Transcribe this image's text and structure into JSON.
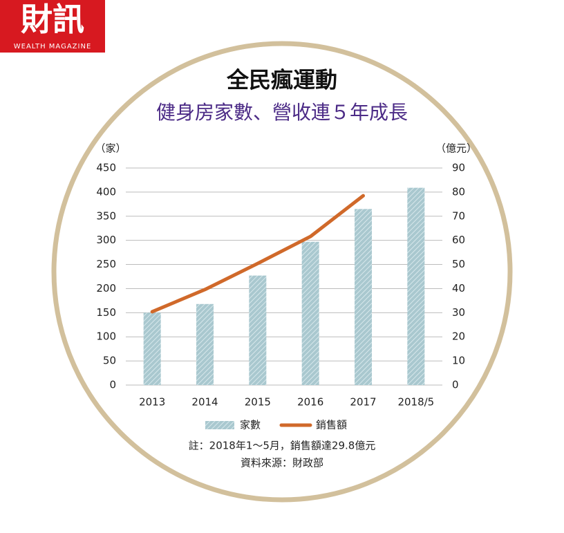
{
  "logo": {
    "title": "財訊",
    "subtitle": "WEALTH MAGAZINE"
  },
  "chart_data": {
    "type": "bar",
    "title": "全民瘋運動",
    "subtitle": "健身房家數、營收連５年成長",
    "y_label": "（家）",
    "y2_label": "（億元）",
    "categories": [
      "2013",
      "2014",
      "2015",
      "2016",
      "2017",
      "2018/5"
    ],
    "series": [
      {
        "name": "家數",
        "type": "bar",
        "color": "#a9c8cf",
        "values": [
          150,
          168,
          227,
          297,
          365,
          409
        ]
      },
      {
        "name": "銷售額",
        "type": "line",
        "axis": "y2",
        "color": "#d0692a",
        "values": [
          30.4,
          39.6,
          50.4,
          61.6,
          78.5,
          null
        ]
      }
    ],
    "ylim": [
      0,
      450
    ],
    "yticks": [
      0,
      50,
      100,
      150,
      200,
      250,
      300,
      350,
      400,
      450
    ],
    "y2lim": [
      0,
      90
    ],
    "y2ticks": [
      0,
      10,
      20,
      30,
      40,
      50,
      60,
      70,
      80,
      90
    ],
    "grid": true,
    "notes": [
      "註：2018年1～5月，銷售額達29.8億元",
      "資料來源：財政部"
    ]
  }
}
